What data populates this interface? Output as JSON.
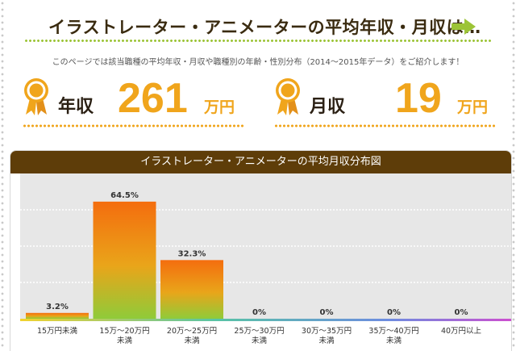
{
  "header": {
    "title": "イラストレーター・アニメーターの平均年収・月収は…",
    "subtitle": "このページでは該当職種の平均年収・月収や職種別の年齢・性別分布（2014〜2015年データ）をご紹介します！"
  },
  "stats": {
    "annual": {
      "label": "年収",
      "value": "261",
      "unit": "万円"
    },
    "monthly": {
      "label": "月収",
      "value": "19",
      "unit": "万円"
    }
  },
  "colors": {
    "accent_green": "#9cc436",
    "accent_orange": "#f0a51c",
    "header_brown": "#5e3d09"
  },
  "chart_data": {
    "type": "bar",
    "title": "イラストレーター・アニメーターの平均月収分布図",
    "categories": [
      "15万円未満",
      "15万〜20万円未満",
      "20万〜25万円未満",
      "25万〜30万円未満",
      "30万〜35万円未満",
      "35万〜40万円未満",
      "40万円以上"
    ],
    "category_lines": [
      [
        "15万円未満"
      ],
      [
        "15万〜20万円",
        "未満"
      ],
      [
        "20万〜25万円",
        "未満"
      ],
      [
        "25万〜30万円",
        "未満"
      ],
      [
        "30万〜35万円",
        "未満"
      ],
      [
        "35万〜40万円",
        "未満"
      ],
      [
        "40万円以上"
      ]
    ],
    "values": [
      3.2,
      64.5,
      32.3,
      0,
      0,
      0,
      0
    ],
    "value_labels": [
      "3.2%",
      "64.5%",
      "32.3%",
      "0%",
      "0%",
      "0%",
      "0%"
    ],
    "ylim": [
      0,
      80
    ],
    "unit": "%",
    "grid": true
  }
}
